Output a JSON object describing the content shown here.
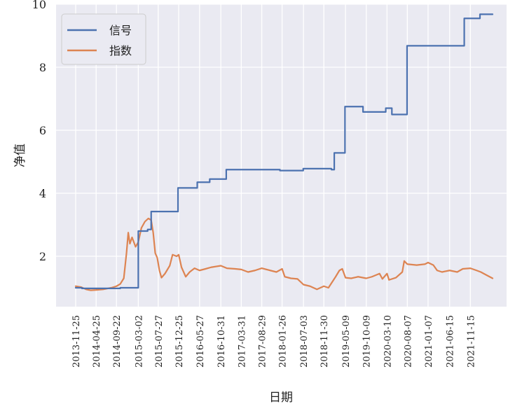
{
  "chart_data": {
    "type": "line",
    "title": "",
    "xlabel": "日期",
    "ylabel": "净值",
    "ylim": [
      0.4,
      10
    ],
    "yticks": [
      2,
      4,
      6,
      8,
      10
    ],
    "xticks": [
      "2013-11-25",
      "2014-04-25",
      "2014-09-22",
      "2015-03-02",
      "2015-07-27",
      "2015-12-25",
      "2016-05-27",
      "2016-10-31",
      "2017-03-31",
      "2017-08-29",
      "2018-01-26",
      "2018-07-03",
      "2018-11-30",
      "2019-05-09",
      "2019-10-09",
      "2020-03-10",
      "2020-08-07",
      "2021-01-07",
      "2021-06-15",
      "2021-11-15"
    ],
    "grid": true,
    "legend": "top-left",
    "series": [
      {
        "name": "信号",
        "color": "#4c72b0",
        "step": true,
        "points": [
          [
            "2013-11-25",
            1.0
          ],
          [
            "2014-01-10",
            1.0
          ],
          [
            "2014-01-10",
            0.98
          ],
          [
            "2014-10-20",
            0.98
          ],
          [
            "2014-10-20",
            1.0
          ],
          [
            "2015-03-02",
            1.0
          ],
          [
            "2015-03-02",
            2.8
          ],
          [
            "2015-05-10",
            2.8
          ],
          [
            "2015-05-10",
            2.85
          ],
          [
            "2015-06-05",
            2.85
          ],
          [
            "2015-06-05",
            3.42
          ],
          [
            "2015-12-20",
            3.42
          ],
          [
            "2015-12-20",
            4.17
          ],
          [
            "2016-05-10",
            4.17
          ],
          [
            "2016-05-10",
            4.35
          ],
          [
            "2016-08-10",
            4.35
          ],
          [
            "2016-08-10",
            4.45
          ],
          [
            "2016-12-10",
            4.45
          ],
          [
            "2016-12-10",
            4.75
          ],
          [
            "2018-01-10",
            4.75
          ],
          [
            "2018-01-10",
            4.72
          ],
          [
            "2018-07-01",
            4.72
          ],
          [
            "2018-07-01",
            4.78
          ],
          [
            "2019-01-25",
            4.78
          ],
          [
            "2019-01-25",
            4.75
          ],
          [
            "2019-02-15",
            4.75
          ],
          [
            "2019-02-15",
            5.28
          ],
          [
            "2019-05-05",
            5.28
          ],
          [
            "2019-05-05",
            6.75
          ],
          [
            "2019-09-15",
            6.75
          ],
          [
            "2019-09-15",
            6.58
          ],
          [
            "2020-03-01",
            6.58
          ],
          [
            "2020-03-01",
            6.7
          ],
          [
            "2020-04-15",
            6.7
          ],
          [
            "2020-04-15",
            6.5
          ],
          [
            "2020-08-05",
            6.5
          ],
          [
            "2020-08-05",
            8.68
          ],
          [
            "2021-10-01",
            8.68
          ],
          [
            "2021-10-01",
            9.55
          ],
          [
            "2022-01-25",
            9.55
          ],
          [
            "2022-01-25",
            9.68
          ],
          [
            "2022-04-28",
            9.68
          ]
        ]
      },
      {
        "name": "指数",
        "color": "#dd8452",
        "step": false,
        "points": [
          [
            "2013-11-25",
            1.05
          ],
          [
            "2014-01-05",
            1.02
          ],
          [
            "2014-02-10",
            0.95
          ],
          [
            "2014-03-15",
            0.92
          ],
          [
            "2014-04-25",
            0.93
          ],
          [
            "2014-06-15",
            0.95
          ],
          [
            "2014-08-15",
            1.0
          ],
          [
            "2014-09-22",
            1.05
          ],
          [
            "2014-10-20",
            1.12
          ],
          [
            "2014-11-15",
            1.3
          ],
          [
            "2014-12-05",
            2.1
          ],
          [
            "2014-12-18",
            2.75
          ],
          [
            "2014-12-30",
            2.4
          ],
          [
            "2015-01-15",
            2.6
          ],
          [
            "2015-02-10",
            2.3
          ],
          [
            "2015-03-02",
            2.45
          ],
          [
            "2015-03-25",
            2.9
          ],
          [
            "2015-04-20",
            3.1
          ],
          [
            "2015-05-15",
            3.2
          ],
          [
            "2015-06-05",
            3.15
          ],
          [
            "2015-06-20",
            2.75
          ],
          [
            "2015-07-05",
            2.1
          ],
          [
            "2015-07-20",
            1.95
          ],
          [
            "2015-08-05",
            1.55
          ],
          [
            "2015-08-20",
            1.32
          ],
          [
            "2015-09-15",
            1.45
          ],
          [
            "2015-10-20",
            1.7
          ],
          [
            "2015-11-10",
            2.05
          ],
          [
            "2015-12-10",
            2.0
          ],
          [
            "2015-12-25",
            2.05
          ],
          [
            "2016-01-15",
            1.65
          ],
          [
            "2016-02-15",
            1.35
          ],
          [
            "2016-03-15",
            1.5
          ],
          [
            "2016-04-20",
            1.62
          ],
          [
            "2016-05-27",
            1.55
          ],
          [
            "2016-07-10",
            1.6
          ],
          [
            "2016-08-20",
            1.65
          ],
          [
            "2016-10-31",
            1.7
          ],
          [
            "2016-12-15",
            1.62
          ],
          [
            "2017-02-15",
            1.6
          ],
          [
            "2017-03-31",
            1.58
          ],
          [
            "2017-05-20",
            1.5
          ],
          [
            "2017-07-10",
            1.55
          ],
          [
            "2017-08-29",
            1.62
          ],
          [
            "2017-10-30",
            1.55
          ],
          [
            "2017-12-15",
            1.5
          ],
          [
            "2018-01-26",
            1.6
          ],
          [
            "2018-02-15",
            1.35
          ],
          [
            "2018-04-01",
            1.3
          ],
          [
            "2018-05-20",
            1.28
          ],
          [
            "2018-07-03",
            1.1
          ],
          [
            "2018-08-20",
            1.05
          ],
          [
            "2018-10-10",
            0.95
          ],
          [
            "2018-11-30",
            1.05
          ],
          [
            "2019-01-03",
            1.0
          ],
          [
            "2019-02-25",
            1.35
          ],
          [
            "2019-03-25",
            1.55
          ],
          [
            "2019-04-15",
            1.6
          ],
          [
            "2019-05-09",
            1.32
          ],
          [
            "2019-06-20",
            1.3
          ],
          [
            "2019-08-10",
            1.35
          ],
          [
            "2019-10-09",
            1.3
          ],
          [
            "2019-11-20",
            1.35
          ],
          [
            "2020-01-15",
            1.45
          ],
          [
            "2020-02-05",
            1.28
          ],
          [
            "2020-03-10",
            1.45
          ],
          [
            "2020-03-25",
            1.25
          ],
          [
            "2020-05-15",
            1.32
          ],
          [
            "2020-07-01",
            1.5
          ],
          [
            "2020-07-15",
            1.85
          ],
          [
            "2020-08-07",
            1.75
          ],
          [
            "2020-10-15",
            1.72
          ],
          [
            "2020-12-15",
            1.75
          ],
          [
            "2021-01-07",
            1.8
          ],
          [
            "2021-02-15",
            1.72
          ],
          [
            "2021-03-15",
            1.55
          ],
          [
            "2021-04-20",
            1.5
          ],
          [
            "2021-06-15",
            1.55
          ],
          [
            "2021-08-10",
            1.5
          ],
          [
            "2021-09-20",
            1.6
          ],
          [
            "2021-11-15",
            1.62
          ],
          [
            "2021-12-31",
            1.55
          ],
          [
            "2022-01-31",
            1.5
          ],
          [
            "2022-03-15",
            1.4
          ],
          [
            "2022-04-28",
            1.3
          ]
        ]
      }
    ]
  }
}
